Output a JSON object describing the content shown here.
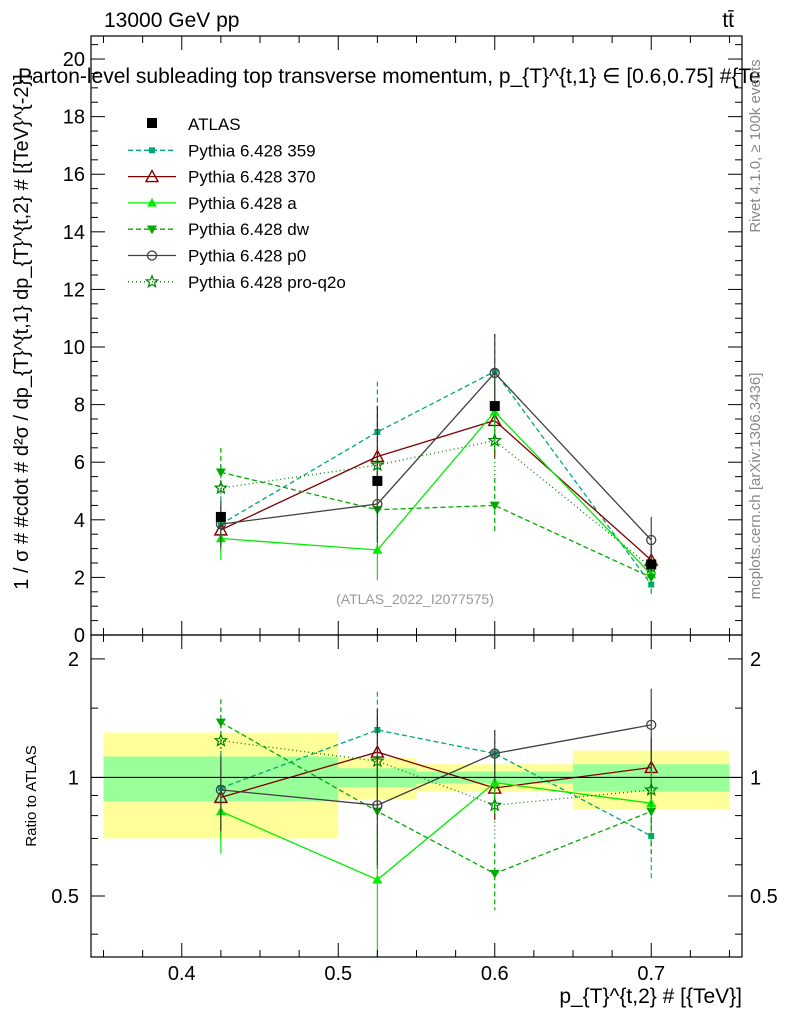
{
  "header": {
    "energy": "13000 GeV pp",
    "process": "tt̄",
    "title": "Parton-level subleading top transverse momentum, p_{T}^{t,1} ∈ [0.6,0.75] #{Te",
    "rivet": "Rivet 4.1.0, ≥ 100k events",
    "mcplots": "mcplots.cern.ch [arXiv:1306.3436]",
    "watermark": "(ATLAS_2022_I2077575)"
  },
  "chart_data": {
    "type": "scatter",
    "main": {
      "ylabel": "1 / σ # #cdot # d²σ / dp_{T}^{t,1} dp_{T}^{t,2} # [{TeV}^{-2}]",
      "ylim": [
        0,
        20.8
      ],
      "yticks": [
        0,
        2,
        4,
        6,
        8,
        10,
        12,
        14,
        16,
        18,
        20
      ]
    },
    "ratio": {
      "ylabel": "Ratio to ATLAS",
      "ylim": [
        0.35,
        2.3
      ],
      "yticks": [
        0.5,
        1,
        2
      ],
      "ytick_labels": [
        "0.5",
        "1",
        "2"
      ]
    },
    "x": {
      "label": "p_{T}^{t,2} # [{TeV}]",
      "xlim": [
        0.342,
        0.758
      ],
      "ticks": [
        0.4,
        0.5,
        0.6,
        0.7
      ],
      "tick_labels": [
        "0.4",
        "0.5",
        "0.6",
        "0.7"
      ]
    },
    "bins": [
      [
        0.35,
        0.5
      ],
      [
        0.5,
        0.55
      ],
      [
        0.55,
        0.65
      ],
      [
        0.65,
        0.75
      ]
    ],
    "data": {
      "name": "ATLAS",
      "x": [
        0.425,
        0.525,
        0.6,
        0.7
      ],
      "y": [
        4.1,
        5.35,
        7.95,
        2.45
      ],
      "band1_rel": [
        0.13,
        0.055,
        0.035,
        0.08
      ],
      "band2_rel": [
        0.3,
        0.12,
        0.08,
        0.17
      ]
    },
    "series": [
      {
        "name": "Pythia 6.428 359",
        "color": "#00a878",
        "dash": "5,3",
        "marker": "square-small",
        "x": [
          0.425,
          0.525,
          0.6,
          0.7
        ],
        "y": [
          3.85,
          7.05,
          9.15,
          1.75
        ],
        "err": [
          0.9,
          1.75,
          1.3,
          0.4
        ],
        "ratio": [
          0.94,
          1.32,
          1.15,
          0.71
        ],
        "ratio_err": [
          0.22,
          0.33,
          0.16,
          0.16
        ]
      },
      {
        "name": "Pythia 6.428 370",
        "color": "#800000",
        "dash": "",
        "marker": "triangle-open",
        "x": [
          0.425,
          0.525,
          0.6,
          0.7
        ],
        "y": [
          3.65,
          6.2,
          7.45,
          2.6
        ],
        "err": [
          0.8,
          1.75,
          1.3,
          0.5
        ],
        "ratio": [
          0.89,
          1.16,
          0.94,
          1.06
        ],
        "ratio_err": [
          0.2,
          0.33,
          0.16,
          0.2
        ]
      },
      {
        "name": "Pythia 6.428 a",
        "color": "#00ee00",
        "dash": "",
        "marker": "triangle",
        "x": [
          0.425,
          0.525,
          0.6,
          0.7
        ],
        "y": [
          3.35,
          2.95,
          7.75,
          2.1
        ],
        "err": [
          0.75,
          1.05,
          1.3,
          0.45
        ],
        "ratio": [
          0.82,
          0.55,
          0.97,
          0.86
        ],
        "ratio_err": [
          0.18,
          0.2,
          0.16,
          0.18
        ]
      },
      {
        "name": "Pythia 6.428 dw",
        "color": "#00aa00",
        "dash": "5,3",
        "marker": "triangle-down",
        "x": [
          0.425,
          0.525,
          0.6,
          0.7
        ],
        "y": [
          5.65,
          4.35,
          4.5,
          2.0
        ],
        "err": [
          0.85,
          1.3,
          0.95,
          0.45
        ],
        "ratio": [
          1.38,
          0.82,
          0.57,
          0.82
        ],
        "ratio_err": [
          0.2,
          0.24,
          0.11,
          0.18
        ]
      },
      {
        "name": "Pythia 6.428 p0",
        "color": "#404040",
        "dash": "",
        "marker": "circle-open",
        "x": [
          0.425,
          0.525,
          0.6,
          0.7
        ],
        "y": [
          3.85,
          4.55,
          9.1,
          3.3
        ],
        "err": [
          0.8,
          1.35,
          1.35,
          0.8
        ],
        "ratio": [
          0.93,
          0.85,
          1.15,
          1.36
        ],
        "ratio_err": [
          0.2,
          0.25,
          0.17,
          0.32
        ]
      },
      {
        "name": "Pythia 6.428 pro-q2o",
        "color": "#008000",
        "dash": "1,3",
        "marker": "star",
        "x": [
          0.425,
          0.525,
          0.6,
          0.7
        ],
        "y": [
          5.1,
          5.9,
          6.75,
          2.35
        ],
        "err": [
          0.8,
          1.6,
          1.2,
          0.45
        ],
        "ratio": [
          1.24,
          1.1,
          0.85,
          0.93
        ],
        "ratio_err": [
          0.2,
          0.3,
          0.15,
          0.19
        ]
      }
    ]
  }
}
